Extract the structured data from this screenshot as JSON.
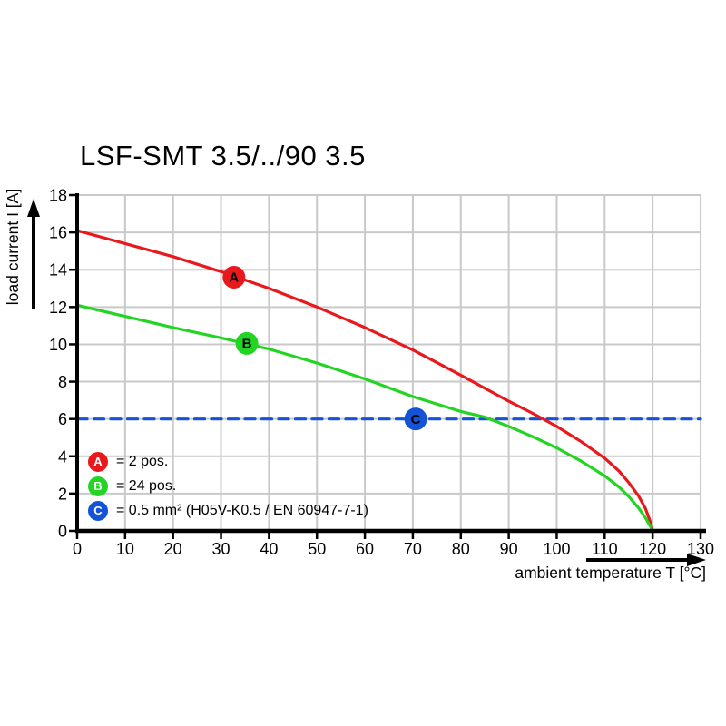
{
  "colors": {
    "background": "#ffffff",
    "grid": "#c9c9c9",
    "axis": "#000000",
    "red": "#e8191d",
    "green": "#23d523",
    "blue": "#1453d8",
    "marker_text": "#ffffff"
  },
  "chart_data": {
    "type": "line",
    "title": "LSF-SMT 3.5/../90 3.5",
    "xlabel": "ambient temperature T [°C]",
    "ylabel": "load current I [A]",
    "xlim": [
      0,
      130
    ],
    "ylim": [
      0,
      18
    ],
    "x_ticks": [
      0,
      10,
      20,
      30,
      40,
      50,
      60,
      70,
      80,
      90,
      100,
      110,
      120,
      130
    ],
    "y_ticks": [
      0,
      2,
      4,
      6,
      8,
      10,
      12,
      14,
      16,
      18
    ],
    "grid": true,
    "legend_position": "inside-bottom-left",
    "series": [
      {
        "name": "A",
        "legend_label": "= 2 pos.",
        "color": "#e8191d",
        "style": "solid",
        "marker": {
          "label": "A",
          "x": 32.7,
          "y": 13.6
        },
        "points": [
          [
            0,
            16.1
          ],
          [
            10,
            15.4
          ],
          [
            20,
            14.7
          ],
          [
            30,
            13.9
          ],
          [
            40,
            13.0
          ],
          [
            50,
            12.0
          ],
          [
            60,
            10.9
          ],
          [
            70,
            9.7
          ],
          [
            80,
            8.35
          ],
          [
            90,
            6.95
          ],
          [
            95,
            6.3
          ],
          [
            100,
            5.6
          ],
          [
            105,
            4.8
          ],
          [
            110,
            3.9
          ],
          [
            113,
            3.2
          ],
          [
            115,
            2.6
          ],
          [
            117,
            1.9
          ],
          [
            118.5,
            1.2
          ],
          [
            119.5,
            0.5
          ],
          [
            120,
            0
          ]
        ]
      },
      {
        "name": "B",
        "legend_label": "= 24 pos.",
        "color": "#23d523",
        "style": "solid",
        "marker": {
          "label": "B",
          "x": 35.4,
          "y": 10.05
        },
        "points": [
          [
            0,
            12.1
          ],
          [
            10,
            11.5
          ],
          [
            20,
            10.9
          ],
          [
            30,
            10.35
          ],
          [
            40,
            9.75
          ],
          [
            50,
            9.0
          ],
          [
            60,
            8.15
          ],
          [
            70,
            7.2
          ],
          [
            80,
            6.4
          ],
          [
            85,
            6.1
          ],
          [
            90,
            5.6
          ],
          [
            95,
            5.05
          ],
          [
            100,
            4.45
          ],
          [
            105,
            3.75
          ],
          [
            110,
            2.95
          ],
          [
            113,
            2.35
          ],
          [
            115,
            1.85
          ],
          [
            117,
            1.25
          ],
          [
            118.5,
            0.7
          ],
          [
            119.5,
            0.25
          ],
          [
            120,
            0
          ]
        ]
      },
      {
        "name": "C",
        "legend_label": "= 0.5 mm² (H05V-K0.5 / EN 60947-7-1)",
        "color": "#1453d8",
        "style": "dashed",
        "marker": {
          "label": "C",
          "x": 70.6,
          "y": 6
        },
        "points": [
          [
            0,
            6
          ],
          [
            130,
            6
          ]
        ]
      }
    ]
  }
}
